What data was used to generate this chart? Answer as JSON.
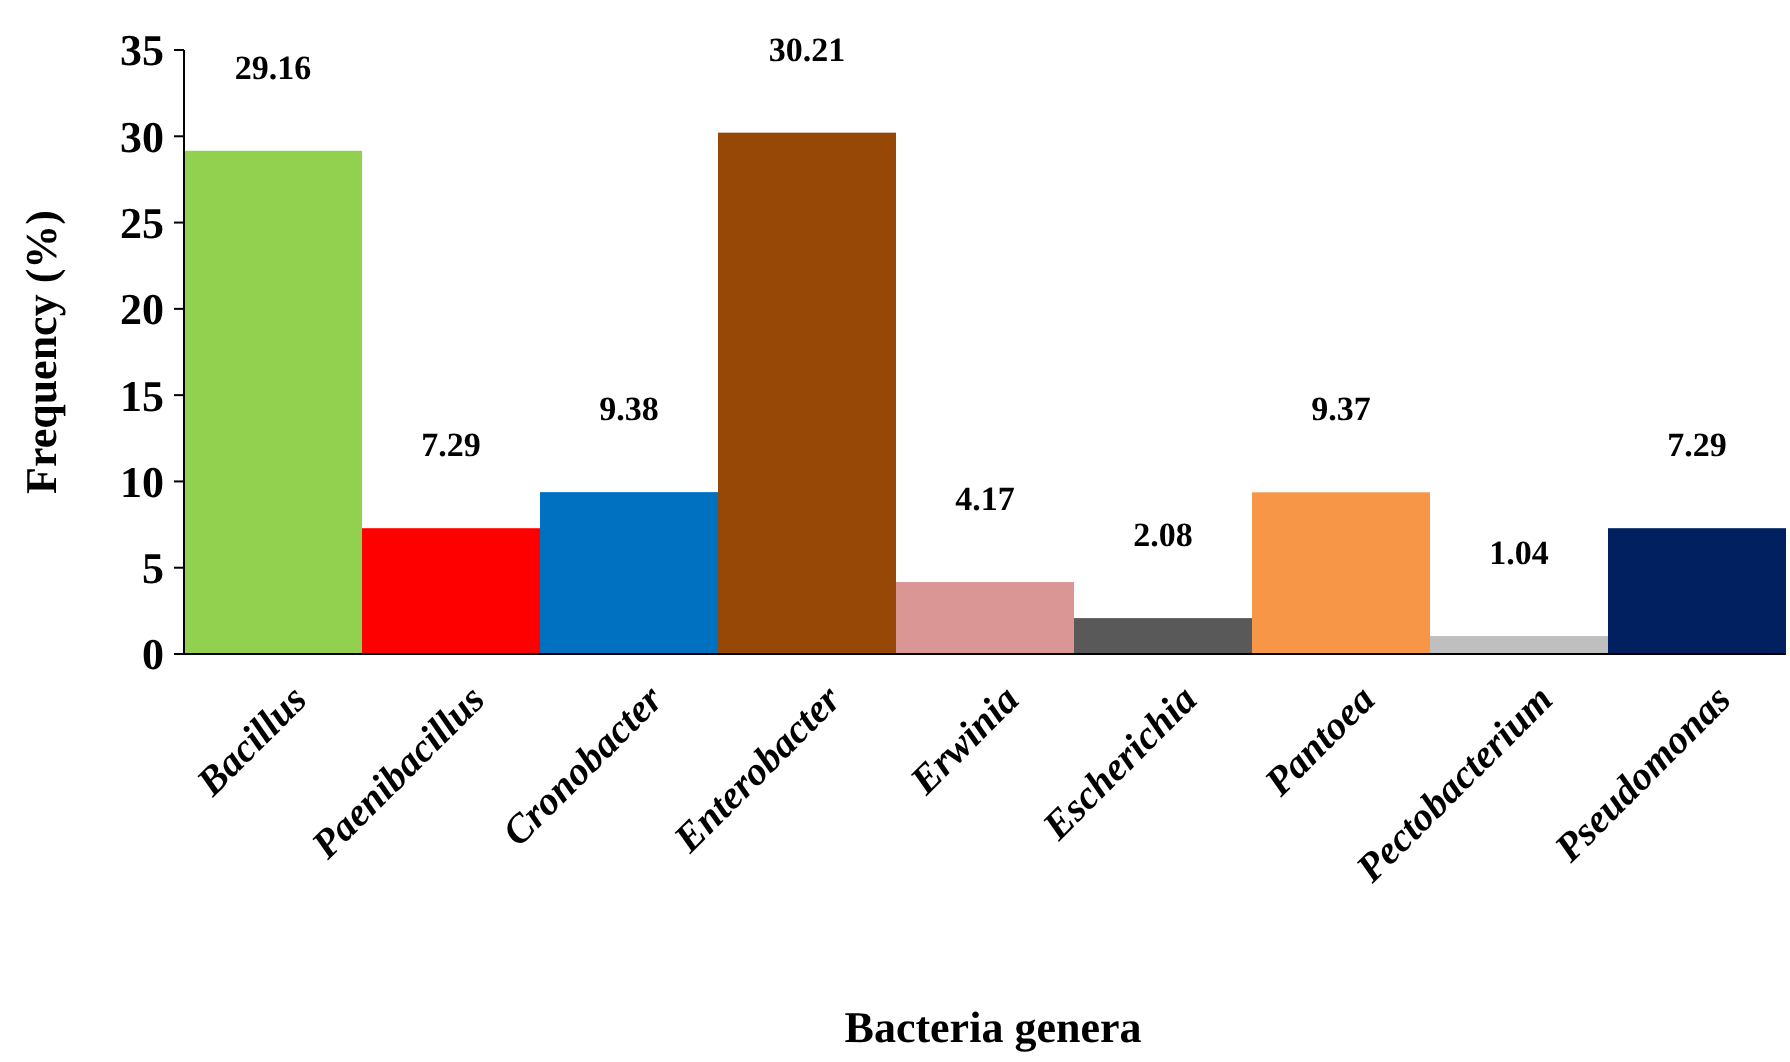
{
  "chart_data": {
    "type": "bar",
    "xlabel": "Bacteria genera",
    "ylabel": "Frequency (%)",
    "categories": [
      "Bacillus",
      "Paenibacillus",
      "Cronobacter",
      "Enterobacter",
      "Erwinia",
      "Escherichia",
      "Pantoea",
      "Pectobacterium",
      "Pseudomonas"
    ],
    "values": [
      29.16,
      7.29,
      9.38,
      30.21,
      4.17,
      2.08,
      9.37,
      1.04,
      7.29
    ],
    "colors": [
      "#92d050",
      "#ff0000",
      "#0070c0",
      "#974706",
      "#d99694",
      "#595959",
      "#f79646",
      "#bfbfbf",
      "#002060"
    ],
    "ylim": [
      0,
      35
    ],
    "yticks": [
      0,
      5,
      10,
      15,
      20,
      25,
      30,
      35
    ],
    "grid": false,
    "data_labels": true
  }
}
